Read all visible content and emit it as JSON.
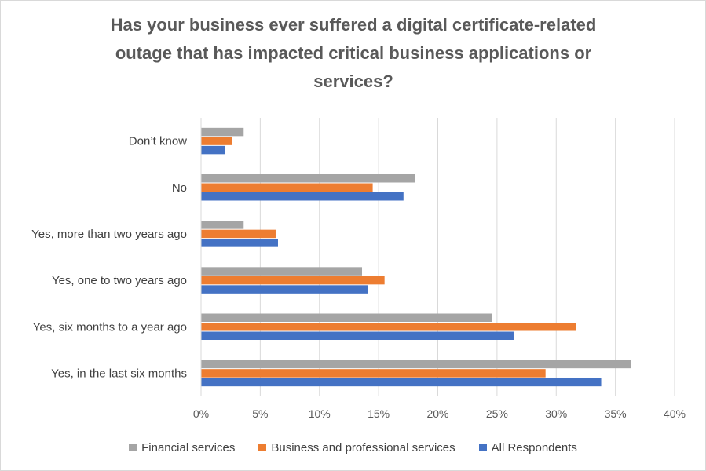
{
  "chart_data": {
    "type": "bar",
    "orientation": "horizontal",
    "title": "Has your business ever suffered a digital certificate-related outage that has impacted critical business applications or services?",
    "categories": [
      "Don’t know",
      "No",
      "Yes, more than two years ago",
      "Yes, one to two years ago",
      "Yes, six months to a year ago",
      "Yes, in the last six months"
    ],
    "series": [
      {
        "name": "Financial services",
        "color": "#a5a5a5",
        "values": [
          3.6,
          18.1,
          3.6,
          13.6,
          24.6,
          36.3
        ]
      },
      {
        "name": "Business and professional services",
        "color": "#ed7d31",
        "values": [
          2.6,
          14.5,
          6.3,
          15.5,
          31.7,
          29.1
        ]
      },
      {
        "name": "All Respondents",
        "color": "#4472c4",
        "values": [
          2.0,
          17.1,
          6.5,
          14.1,
          26.4,
          33.8
        ]
      }
    ],
    "xlim": [
      0,
      40
    ],
    "x_ticks": [
      "0%",
      "5%",
      "10%",
      "15%",
      "20%",
      "25%",
      "30%",
      "35%",
      "40%"
    ],
    "grid": true,
    "legend_position": "bottom"
  }
}
